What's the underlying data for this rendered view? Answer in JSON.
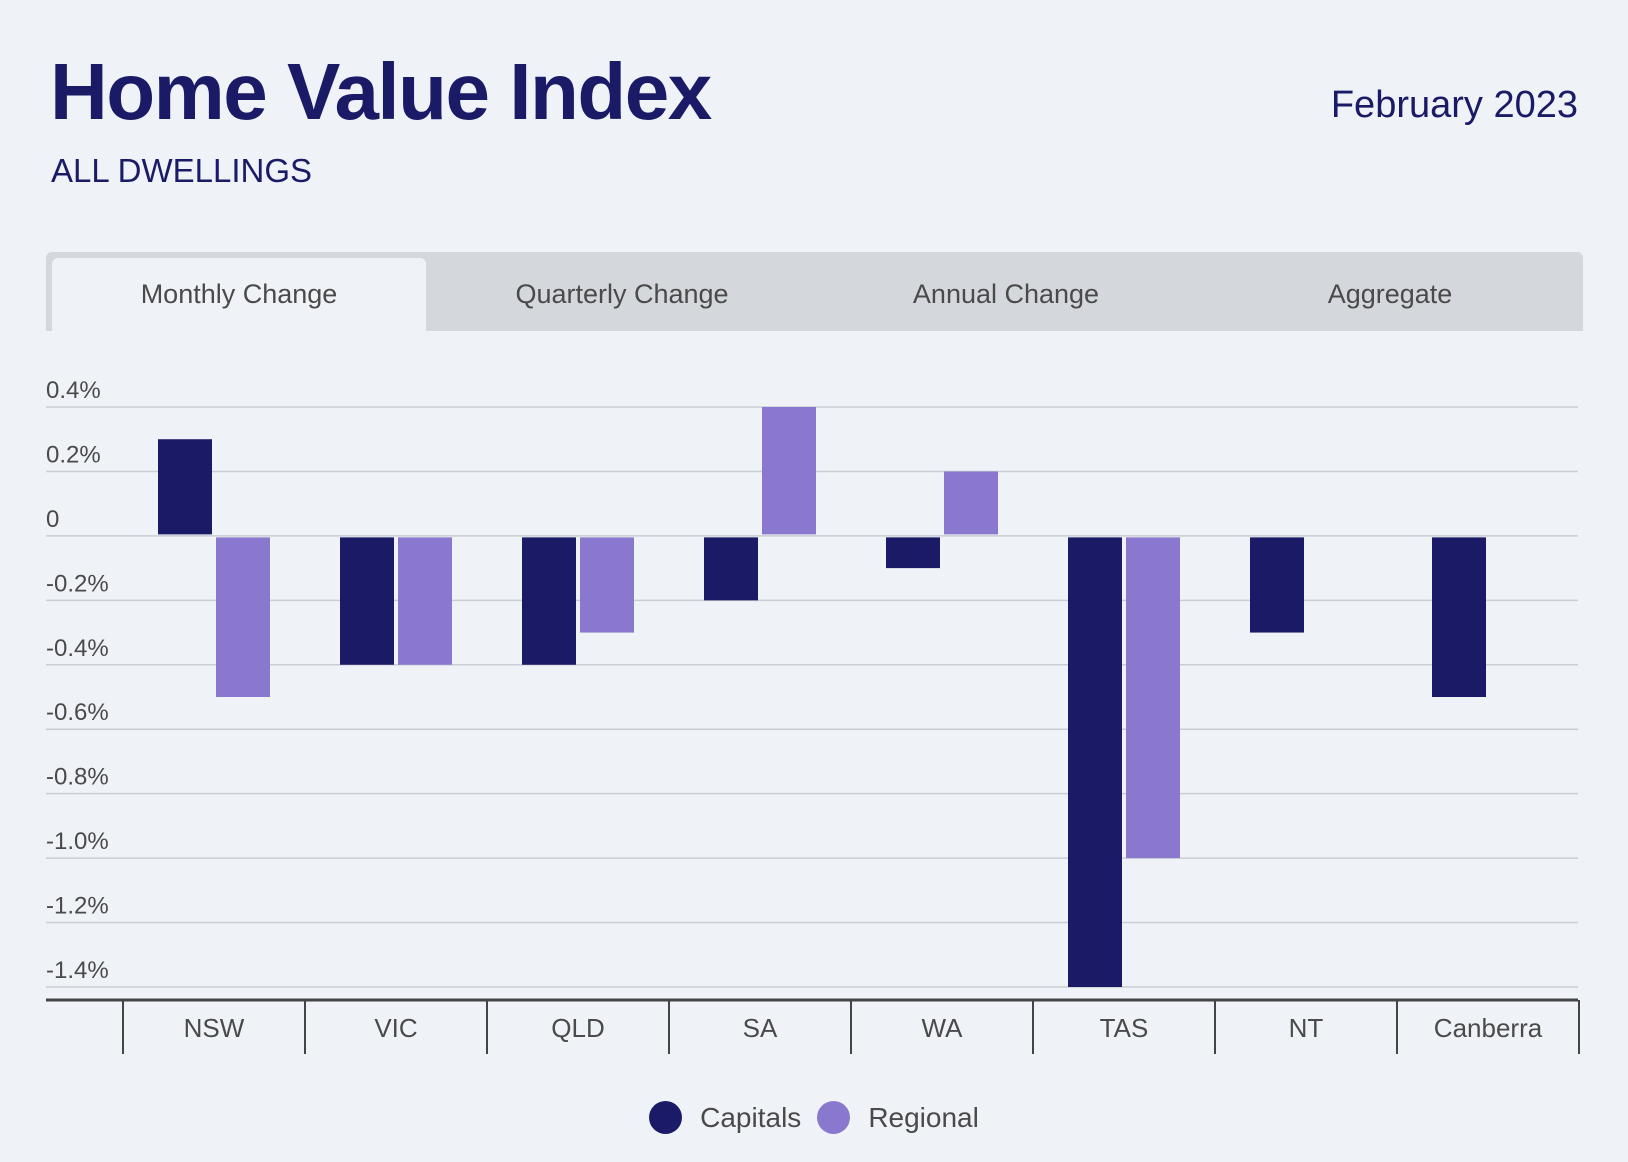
{
  "header": {
    "title": "Home Value Index",
    "subtitle": "ALL DWELLINGS",
    "date": "February 2023"
  },
  "tabs": [
    "Monthly Change",
    "Quarterly Change",
    "Annual Change",
    "Aggregate"
  ],
  "active_tab": 0,
  "colors": {
    "capitals": "#1b1a66",
    "regional": "#8a78cf",
    "grid": "#c9ced4",
    "axis": "#444444",
    "text": "#4a4a4a"
  },
  "chart_data": {
    "type": "bar",
    "title": "Home Value Index",
    "categories": [
      "NSW",
      "VIC",
      "QLD",
      "SA",
      "WA",
      "TAS",
      "NT",
      "Canberra"
    ],
    "series": [
      {
        "name": "Capitals",
        "values": [
          0.3,
          -0.4,
          -0.4,
          -0.2,
          -0.1,
          -1.4,
          -0.3,
          -0.5
        ]
      },
      {
        "name": "Regional",
        "values": [
          -0.5,
          -0.4,
          -0.3,
          0.4,
          0.2,
          -1.0,
          null,
          null
        ]
      }
    ],
    "yticks": [
      0.4,
      0.2,
      0,
      -0.2,
      -0.4,
      -0.6,
      -0.8,
      -1.0,
      -1.2,
      -1.4
    ],
    "ytick_labels": [
      "0.4%",
      "0.2%",
      "0",
      "-0.2%",
      "-0.4%",
      "-0.6%",
      "-0.8%",
      "-1.0%",
      "-1.2%",
      "-1.4%"
    ],
    "ylim": [
      -1.4,
      0.4
    ],
    "xlabel": "",
    "ylabel": "",
    "legend": "bottom-center"
  }
}
